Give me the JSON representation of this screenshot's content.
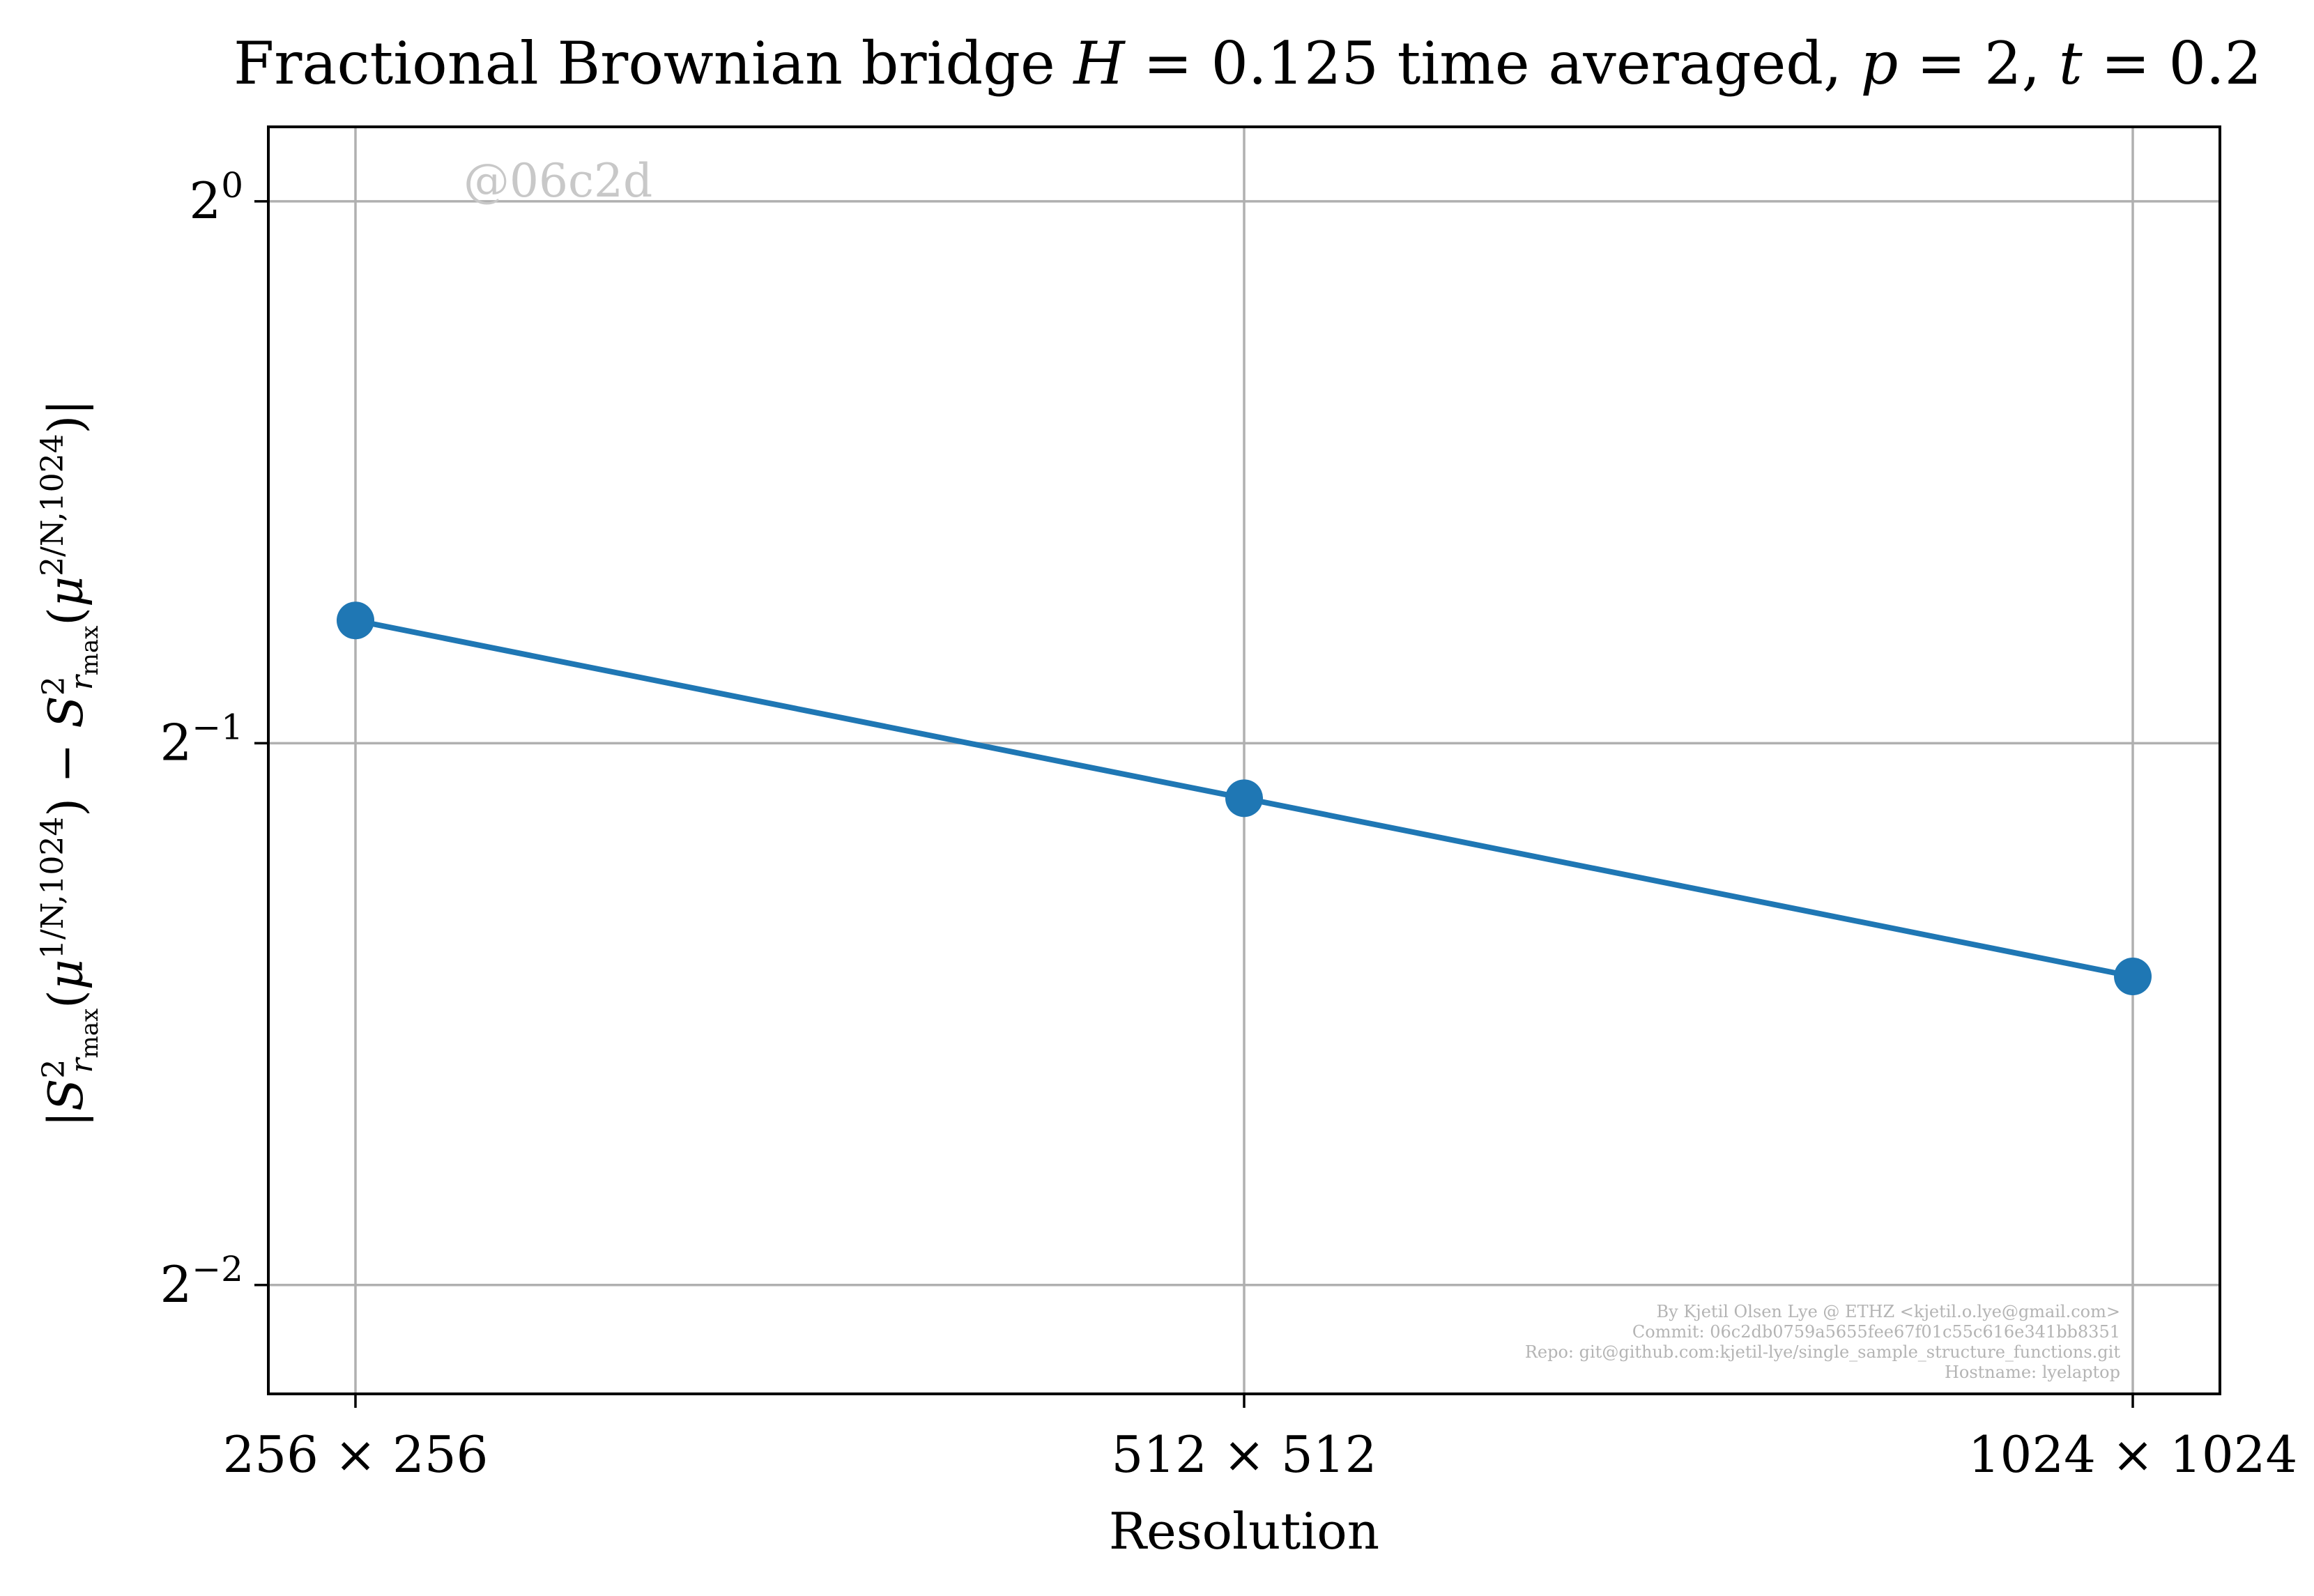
{
  "chart_data": {
    "type": "line",
    "title": "Fractional Brownian bridge H = 0.125 time averaged, p = 2, t = 0.2",
    "xlabel": "Resolution",
    "ylabel": "|S²_{r_max}(μ^{1/N,1024}) − S²_{r_max}(μ^{2/N,1024})|",
    "y_scale": "log2",
    "ylim": [
      0.2175,
      1.1
    ],
    "categories": [
      "256 × 256",
      "512 × 512",
      "1024 × 1024"
    ],
    "y_ticks": [
      {
        "value": 0.25,
        "base": "2",
        "exp": "−2"
      },
      {
        "value": 0.5,
        "base": "2",
        "exp": "−1"
      },
      {
        "value": 1.0,
        "base": "2",
        "exp": "0"
      }
    ],
    "series": [
      {
        "color": "#1f77b4",
        "marker": "circle",
        "values": [
          0.585,
          0.466,
          0.371
        ]
      }
    ],
    "grid": true,
    "legend": "none"
  },
  "watermark": "@06c2d",
  "credits": [
    "By Kjetil Olsen Lye @ ETHZ <kjetil.o.lye@gmail.com>",
    "Commit: 06c2db0759a5655fee67f01c55c616e341bb8351",
    "Repo: git@github.com:kjetil-lye/single_sample_structure_functions.git",
    "Hostname: lyelaptop"
  ],
  "colors": {
    "grid": "#b0b0b0",
    "series": "#1f77b4",
    "watermark": "#c8c8c8",
    "credits": "#b4b4b4"
  }
}
